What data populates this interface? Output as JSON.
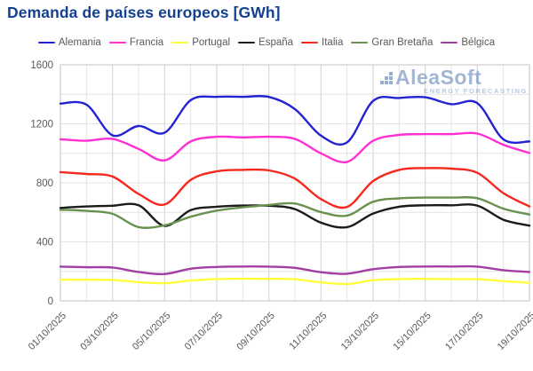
{
  "title": "Demanda de países europeos [GWh]",
  "watermark": {
    "name": "AleaSoft",
    "tagline": "ENERGY FORECASTING"
  },
  "axes": {
    "yticks": [
      "0",
      "400",
      "800",
      "1200",
      "1600"
    ],
    "xtick_labels": [
      "01/10/2025",
      "03/10/2025",
      "05/10/2025",
      "07/10/2025",
      "09/10/2025",
      "11/10/2025",
      "13/10/2025",
      "15/10/2025",
      "17/10/2025",
      "19/10/2025"
    ]
  },
  "chart_data": {
    "type": "line",
    "title": "Demanda de países europeos [GWh]",
    "xlabel": "",
    "ylabel": "",
    "ylim": [
      0,
      1600
    ],
    "yticks": [
      0,
      400,
      800,
      1200,
      1600
    ],
    "grid": true,
    "grid_step_y": 200,
    "legend_position": "top",
    "x_tick_every": 2,
    "categories": [
      "01/10/2025",
      "02/10/2025",
      "03/10/2025",
      "04/10/2025",
      "05/10/2025",
      "06/10/2025",
      "07/10/2025",
      "08/10/2025",
      "09/10/2025",
      "10/10/2025",
      "11/10/2025",
      "12/10/2025",
      "13/10/2025",
      "14/10/2025",
      "15/10/2025",
      "16/10/2025",
      "17/10/2025",
      "18/10/2025",
      "19/10/2025"
    ],
    "series": [
      {
        "name": "Alemania",
        "color": "#2323d3",
        "values": [
          1337,
          1330,
          1122,
          1185,
          1140,
          1360,
          1383,
          1383,
          1382,
          1300,
          1120,
          1074,
          1355,
          1375,
          1380,
          1333,
          1340,
          1095,
          1080
        ]
      },
      {
        "name": "Francia",
        "color": "#ff2fd2",
        "values": [
          1095,
          1085,
          1098,
          1030,
          952,
          1080,
          1112,
          1108,
          1112,
          1098,
          1000,
          942,
          1085,
          1125,
          1130,
          1130,
          1134,
          1058,
          1002
        ]
      },
      {
        "name": "Portugal",
        "color": "#ffff3d",
        "values": [
          144,
          143,
          142,
          127,
          120,
          138,
          148,
          150,
          149,
          146,
          126,
          114,
          140,
          148,
          149,
          148,
          147,
          134,
          123
        ]
      },
      {
        "name": "España",
        "color": "#1b1b1b",
        "values": [
          630,
          640,
          645,
          648,
          508,
          615,
          638,
          646,
          645,
          622,
          530,
          500,
          592,
          638,
          648,
          648,
          646,
          550,
          510
        ]
      },
      {
        "name": "Italia",
        "color": "#f6281e",
        "values": [
          873,
          860,
          843,
          725,
          653,
          820,
          878,
          888,
          884,
          828,
          690,
          637,
          812,
          888,
          900,
          896,
          868,
          730,
          640
        ]
      },
      {
        "name": "Gran Bretaña",
        "color": "#69924f",
        "values": [
          618,
          610,
          590,
          500,
          512,
          570,
          612,
          634,
          650,
          660,
          602,
          578,
          672,
          695,
          700,
          700,
          696,
          625,
          585
        ]
      },
      {
        "name": "Bélgica",
        "color": "#a23ea2",
        "values": [
          232,
          228,
          226,
          196,
          182,
          218,
          230,
          233,
          232,
          224,
          194,
          184,
          215,
          230,
          233,
          233,
          232,
          208,
          196
        ]
      }
    ]
  },
  "colors": {
    "title": "#14418f",
    "grid_minor": "#e4e4e4",
    "grid_major": "#cfcfcf",
    "axis_border": "#c3c3c3",
    "tick_text": "#595959",
    "watermark_text": "#8ba4c9"
  }
}
